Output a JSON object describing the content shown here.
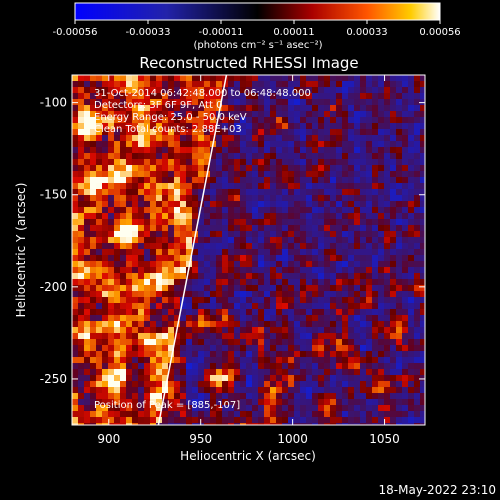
{
  "chart_data": {
    "type": "heatmap",
    "title": "Reconstructed RHESSI Image",
    "xlabel": "Heliocentric X (arcsec)",
    "ylabel": "Heliocentric Y (arcsec)",
    "xlim": [
      880,
      1072
    ],
    "ylim": [
      -275,
      -85
    ],
    "xticks": [
      900,
      950,
      1000,
      1050
    ],
    "yticks": [
      -100,
      -150,
      -200,
      -250
    ],
    "colorbar": {
      "range": [
        -0.00056,
        0.00056
      ],
      "tick_labels": [
        "-0.00056",
        "-0.00033",
        "-0.00011",
        "0.00011",
        "0.00033",
        "0.00056"
      ],
      "unit_label": "(photons cm⁻² s⁻¹ asec⁻²)"
    },
    "annotations": [
      "31-Oct-2014 06:42:48.000 to 06:48:48.000",
      "Detectors: 3F 6F 9F, Att 0",
      "Energy Range: 25.0 - 50.0 keV",
      "Clean  Total counts: 2.88E+03"
    ],
    "peak_text": "Position of Peak = [885,-107]",
    "peak": [
      885,
      -107
    ],
    "limb_line": [
      [
        927,
        -275
      ],
      [
        964,
        -85
      ]
    ],
    "bright_regions": [
      {
        "x": 890,
        "y": -110,
        "strength": 1.0
      },
      {
        "x": 910,
        "y": -172,
        "strength": 0.9
      },
      {
        "x": 903,
        "y": -250,
        "strength": 0.75
      },
      {
        "x": 960,
        "y": -250,
        "strength": 0.8
      },
      {
        "x": 990,
        "y": -110,
        "strength": 0.55
      },
      {
        "x": 1055,
        "y": -225,
        "strength": 0.65
      },
      {
        "x": 1020,
        "y": -265,
        "strength": 0.55
      }
    ]
  },
  "footer": {
    "date": "18-May-2022 23:10"
  }
}
